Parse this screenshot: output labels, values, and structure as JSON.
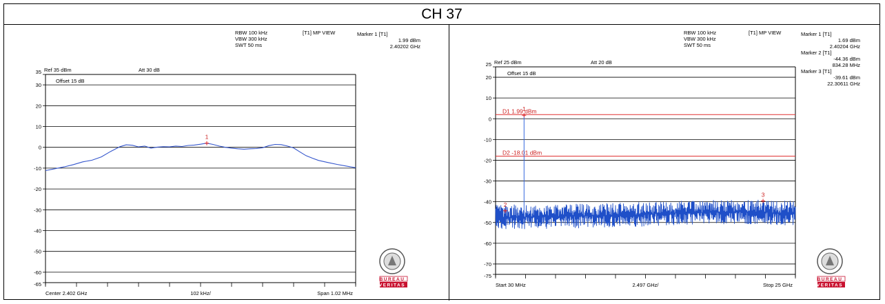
{
  "page_title": "CH 37",
  "chart_data": [
    {
      "type": "line",
      "title": "",
      "header": {
        "rbw": "RBW 100 kHz",
        "vbw": "VBW 300 kHz",
        "swt": "SWT 50 ms",
        "mode": "[T1] MP VIEW",
        "ref": "Ref 35 dBm",
        "att": "Att 30 dB",
        "offset": "Offset 15 dB"
      },
      "markers": [
        {
          "title": "Marker 1 [T1]",
          "level": "1.99 dBm",
          "freq": "2.40202 GHz"
        }
      ],
      "marker_points": [
        {
          "label": "1",
          "x": 0.52,
          "y": 1.99
        }
      ],
      "ylim": [
        -65,
        35
      ],
      "xlim": [
        0,
        1
      ],
      "yticks": [
        35,
        30,
        20,
        10,
        0,
        -10,
        -20,
        -30,
        -40,
        -50,
        -60,
        -65
      ],
      "yticklabels": [
        "35",
        "30",
        "20",
        "10",
        "0",
        "-10",
        "-20",
        "-30",
        "-40",
        "-50",
        "-60",
        "-65"
      ],
      "footer": {
        "left": "Center 2.402 GHz",
        "center": "102 kHz/",
        "right": "Span 1.02 MHz"
      },
      "series": [
        {
          "color": "#3355cc",
          "x": [
            0,
            0.03,
            0.06,
            0.09,
            0.12,
            0.15,
            0.18,
            0.21,
            0.24,
            0.26,
            0.28,
            0.3,
            0.32,
            0.34,
            0.36,
            0.38,
            0.4,
            0.42,
            0.44,
            0.46,
            0.48,
            0.5,
            0.52,
            0.54,
            0.56,
            0.58,
            0.6,
            0.62,
            0.64,
            0.66,
            0.68,
            0.7,
            0.72,
            0.74,
            0.76,
            0.78,
            0.8,
            0.82,
            0.84,
            0.86,
            0.88,
            0.91,
            0.94,
            0.97,
            1.0
          ],
          "values": [
            -11.2,
            -10.3,
            -9.4,
            -8.3,
            -7.0,
            -6.2,
            -4.6,
            -2.0,
            0.3,
            1.2,
            1.0,
            0.2,
            0.6,
            -0.4,
            0.1,
            0.3,
            0.2,
            0.6,
            0.4,
            0.9,
            1.1,
            1.5,
            2.0,
            1.4,
            0.6,
            0.0,
            -0.4,
            -0.7,
            -0.9,
            -0.7,
            -0.6,
            -0.2,
            0.8,
            1.4,
            1.3,
            0.6,
            -0.3,
            -2.2,
            -4.0,
            -5.2,
            -6.3,
            -7.3,
            -8.2,
            -9.0,
            -9.8
          ]
        }
      ]
    },
    {
      "type": "line",
      "title": "",
      "header": {
        "rbw": "RBW 100 kHz",
        "vbw": "VBW 300 kHz",
        "swt": "SWT 50 ms",
        "mode": "[T1] MP VIEW",
        "ref": "Ref 25 dBm",
        "att": "Att 20 dB",
        "offset": "Offset 15 dB"
      },
      "markers": [
        {
          "title": "Marker 1 [T1]",
          "level": "1.69 dBm",
          "freq": "2.40204 GHz"
        },
        {
          "title": "Marker 2 [T1]",
          "level": "-44.36 dBm",
          "freq": "834.28 MHz"
        },
        {
          "title": "Marker 3 [T1]",
          "level": "-39.61 dBm",
          "freq": "22.30611 GHz"
        }
      ],
      "marker_points": [
        {
          "label": "1",
          "x": 2.40204,
          "y": 1.69
        },
        {
          "label": "2",
          "x": 0.83428,
          "y": -44.36
        },
        {
          "label": "3",
          "x": 22.30611,
          "y": -39.61
        }
      ],
      "lines": [
        {
          "label": "D1 1.99 dBm",
          "y": 1.99
        },
        {
          "label": "D2 -18.01 dBm",
          "y": -18.01
        }
      ],
      "ylim": [
        -75,
        25
      ],
      "xlim": [
        0.03,
        25
      ],
      "yticks": [
        25,
        20,
        10,
        0,
        -10,
        -20,
        -30,
        -40,
        -50,
        -60,
        -70,
        -75
      ],
      "yticklabels": [
        "25",
        "20",
        "10",
        "0",
        "-10",
        "-20",
        "-30",
        "-40",
        "-50",
        "-60",
        "-70",
        "-75"
      ],
      "footer": {
        "left": "Start 30 MHz",
        "center": "2.497 GHz/",
        "right": "Stop 25 GHz"
      },
      "series": [
        {
          "color": "#1f4fc8",
          "x": [
            0.03,
            2.40204,
            5.5,
            10,
            15,
            20,
            22.30611,
            25
          ],
          "values": [
            -47.5,
            1.69,
            -47.0,
            -46.5,
            -45.5,
            -44.8,
            -39.61,
            -45.5
          ]
        }
      ]
    }
  ],
  "logo": {
    "top_text": "BUREAU VERITAS",
    "year": "1828",
    "word1": "BUREAU",
    "word2": "VERITAS",
    "color": "#c8102e"
  }
}
